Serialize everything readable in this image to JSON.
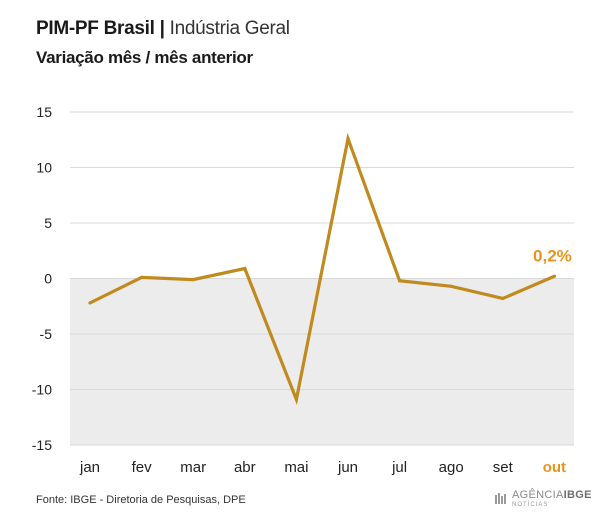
{
  "header": {
    "title": "PIM-PF Brasil",
    "separator": "|",
    "title_sub": "Indústria Geral",
    "subtitle": "Variação mês / mês anterior"
  },
  "footer": {
    "source": "Fonte: IBGE - Diretoria de Pesquisas, DPE",
    "logo_main": "AGÊNCIA",
    "logo_brand": "IBGE",
    "logo_sub": "NOTÍCIAS"
  },
  "colors": {
    "line": "#c08a1e",
    "highlight": "#e8941a",
    "negative_band": "#ececec",
    "grid": "#d9d9d9",
    "text": "#222222"
  },
  "chart_data": {
    "type": "line",
    "categories": [
      "jan",
      "fev",
      "mar",
      "abr",
      "mai",
      "jun",
      "jul",
      "ago",
      "set",
      "out"
    ],
    "values": [
      -2.2,
      0.1,
      -0.1,
      0.9,
      -10.9,
      12.6,
      -0.2,
      -0.7,
      -1.8,
      0.2
    ],
    "title": "PIM-PF Brasil | Indústria Geral",
    "subtitle": "Variação mês / mês anterior",
    "xlabel": "",
    "ylabel": "",
    "ylim": [
      -15,
      15
    ],
    "yticks": [
      15,
      10,
      5,
      0,
      -5,
      -10,
      -15
    ],
    "highlight_index": 9,
    "highlight_label": "0,2%",
    "grid": true,
    "legend": "none"
  }
}
